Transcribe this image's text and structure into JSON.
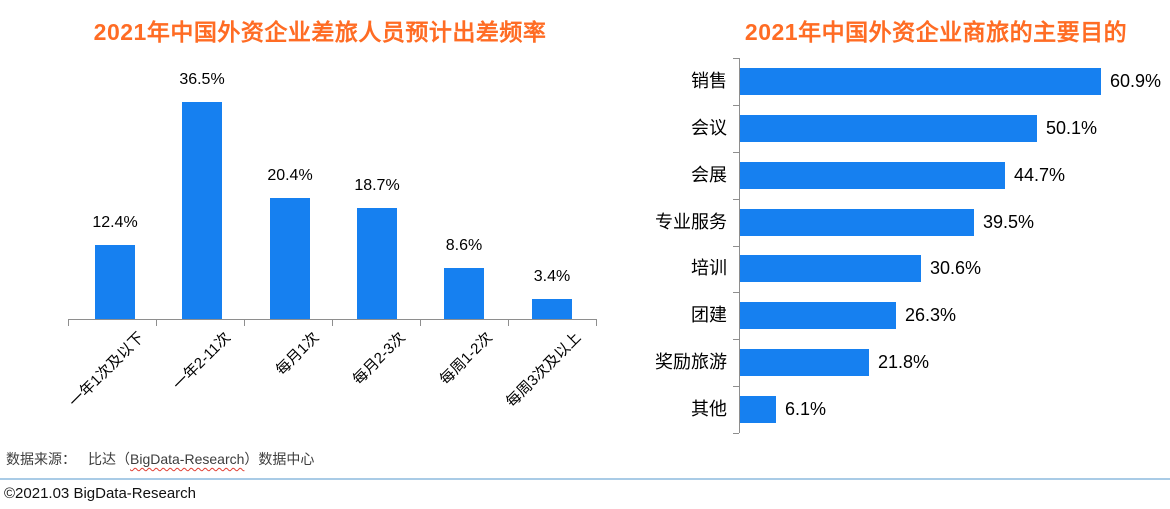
{
  "colors": {
    "bar_blue": "#1680F0",
    "title_orange": "#FF6C24",
    "axis_gray": "#8E8E8E",
    "divider_blue": "#A9CBE6",
    "footer_gray": "#3D3D3D",
    "squiggle_red": "#E03C31"
  },
  "chart_data": [
    {
      "type": "bar",
      "orientation": "vertical",
      "title": "2021年中国外资企业差旅人员预计出差频率",
      "categories": [
        "一年1次及以下",
        "一年2-11次",
        "每月1次",
        "每月2-3次",
        "每周1-2次",
        "每周3次及以上"
      ],
      "values": [
        12.4,
        36.5,
        20.4,
        18.7,
        8.6,
        3.4
      ],
      "value_labels": [
        "12.4%",
        "36.5%",
        "20.4%",
        "18.7%",
        "8.6%",
        "3.4%"
      ],
      "unit": "%",
      "ylim": [
        0,
        40
      ],
      "grid": false,
      "legend": false,
      "bar_color": "#1680F0"
    },
    {
      "type": "bar",
      "orientation": "horizontal",
      "title": "2021年中国外资企业商旅的主要目的",
      "categories": [
        "销售",
        "会议",
        "会展",
        "专业服务",
        "培训",
        "团建",
        "奖励旅游",
        "其他"
      ],
      "values": [
        60.9,
        50.1,
        44.7,
        39.5,
        30.6,
        26.3,
        21.8,
        6.1
      ],
      "value_labels": [
        "60.9%",
        "50.1%",
        "44.7%",
        "39.5%",
        "30.6%",
        "26.3%",
        "21.8%",
        "6.1%"
      ],
      "unit": "%",
      "xlim": [
        0,
        65
      ],
      "grid": false,
      "legend": false,
      "bar_color": "#1680F0"
    }
  ],
  "footer": {
    "source_prefix": "数据来源：",
    "source_mid": "比达（",
    "source_en": "BigData-Research",
    "source_suffix": "）数据中心",
    "copyright": "©2021.03 BigData-Research"
  }
}
